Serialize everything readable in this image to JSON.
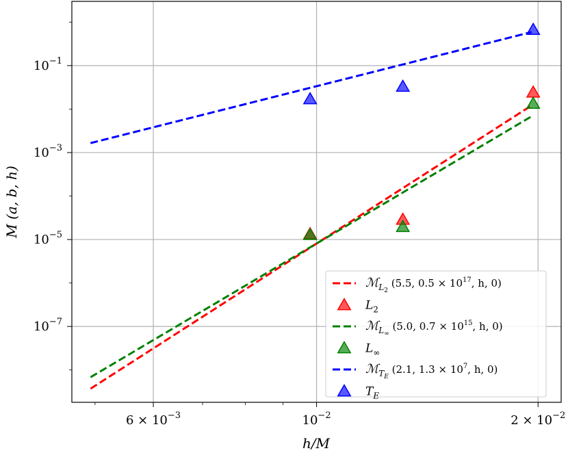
{
  "chart_data": {
    "type": "scatter",
    "title": "",
    "xlabel": "h/M",
    "ylabel": "M (a, b, h)",
    "xscale": "log",
    "yscale": "log",
    "xlim": [
      0.00465,
      0.0215
    ],
    "ylim": [
      1.8e-09,
      3.0
    ],
    "grid": true,
    "legend_position": "lower-right",
    "x_ticks": [
      {
        "value": 0.006,
        "base": "6 × 10",
        "exp": "−3"
      },
      {
        "value": 0.01,
        "base": "10",
        "exp": "−2"
      },
      {
        "value": 0.02,
        "base": "2 × 10",
        "exp": "−2"
      }
    ],
    "y_ticks": [
      {
        "value": 1e-07,
        "base": "10",
        "exp": "−7"
      },
      {
        "value": 1e-05,
        "base": "10",
        "exp": "−5"
      },
      {
        "value": 0.001,
        "base": "10",
        "exp": "−3"
      },
      {
        "value": 0.1,
        "base": "10",
        "exp": "−1"
      }
    ],
    "series": [
      {
        "name": "M_L2 (5.5, 0.5 × 10^17, h, 0)",
        "kind": "line",
        "color": "#ff0000",
        "x": [
          0.00493,
          0.0196
        ],
        "y": [
          3.7e-09,
          0.0121
        ]
      },
      {
        "name": "L2",
        "kind": "marker",
        "color": "#ff0000",
        "x": [
          0.0098,
          0.0131,
          0.0197
        ],
        "y": [
          1.3e-05,
          2.8e-05,
          0.0235
        ]
      },
      {
        "name": "M_L∞ (5.0, 0.7 × 10^15, h, 0)",
        "kind": "line",
        "color": "#008000",
        "x": [
          0.00493,
          0.0196
        ],
        "y": [
          6.8e-09,
          0.0068
        ]
      },
      {
        "name": "L∞",
        "kind": "marker",
        "color": "#008000",
        "x": [
          0.0098,
          0.0131,
          0.0197
        ],
        "y": [
          1.25e-05,
          1.9e-05,
          0.013
        ]
      },
      {
        "name": "M_TE (2.1, 1.3 × 10^7, h, 0)",
        "kind": "line",
        "color": "#0000ff",
        "x": [
          0.00493,
          0.0196
        ],
        "y": [
          0.00165,
          0.59
        ]
      },
      {
        "name": "TE",
        "kind": "marker",
        "color": "#0000ff",
        "x": [
          0.0098,
          0.0131,
          0.0197
        ],
        "y": [
          0.0165,
          0.032,
          0.65
        ]
      }
    ],
    "legend": [
      {
        "kind": "line",
        "color": "#ff0000",
        "script": "ℳ",
        "sub": "L",
        "subsub": "2",
        "params": "(5.5, 0.5 × 10",
        "params_exp": "17",
        "params_end": ", h, 0)"
      },
      {
        "kind": "marker",
        "color": "#ff0000",
        "sym": "L",
        "sub": "2"
      },
      {
        "kind": "line",
        "color": "#008000",
        "script": "ℳ",
        "sub": "L",
        "subsub": "∞",
        "params": "(5.0, 0.7 × 10",
        "params_exp": "15",
        "params_end": ", h, 0)"
      },
      {
        "kind": "marker",
        "color": "#008000",
        "sym": "L",
        "sub": "∞"
      },
      {
        "kind": "line",
        "color": "#0000ff",
        "script": "ℳ",
        "sub": "T",
        "subsub": "E",
        "params": "(2.1, 1.3 × 10",
        "params_exp": "7",
        "params_end": ", h, 0)"
      },
      {
        "kind": "marker",
        "color": "#0000ff",
        "sym": "T",
        "sub": "E"
      }
    ]
  }
}
